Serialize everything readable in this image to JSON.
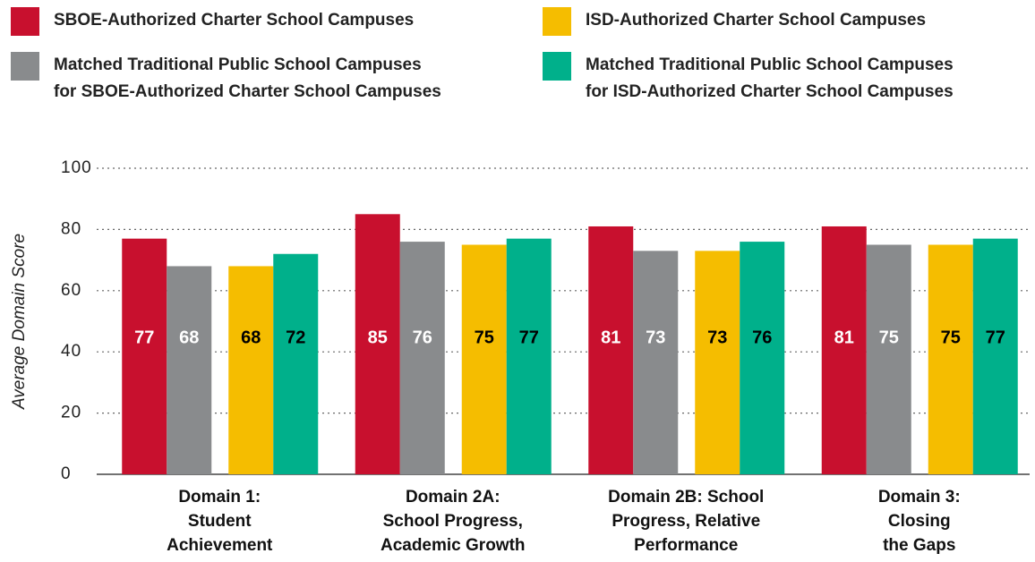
{
  "chart_data": {
    "type": "bar",
    "y_label": "Average Domain Score",
    "categories": [
      "Domain 1:\nStudent\nAchievement",
      "Domain 2A:\nSchool Progress,\nAcademic Growth",
      "Domain 2B: School\nProgress, Relative\nPerformance",
      "Domain 3:\nClosing\nthe Gaps"
    ],
    "series": [
      {
        "name": "SBOE-Authorized Charter School Campuses",
        "color": "#c8102e",
        "label_color": "#ffffff",
        "values": [
          77,
          85,
          81,
          81
        ]
      },
      {
        "name": "Matched Traditional Public School Campuses\nfor SBOE-Authorized Charter School Campuses",
        "color": "#898b8d",
        "label_color": "#ffffff",
        "values": [
          68,
          76,
          73,
          75
        ]
      },
      {
        "name": "ISD-Authorized Charter School Campuses",
        "color": "#f5bd00",
        "label_color": "#000000",
        "values": [
          68,
          75,
          73,
          75
        ]
      },
      {
        "name": "Matched Traditional Public School Campuses\nfor ISD-Authorized Charter School Campuses",
        "color": "#00b08b",
        "label_color": "#000000",
        "values": [
          72,
          77,
          76,
          77
        ]
      }
    ],
    "ylim": [
      0,
      100
    ],
    "yticks": [
      0,
      20,
      40,
      60,
      80,
      100
    ],
    "grid": true
  }
}
